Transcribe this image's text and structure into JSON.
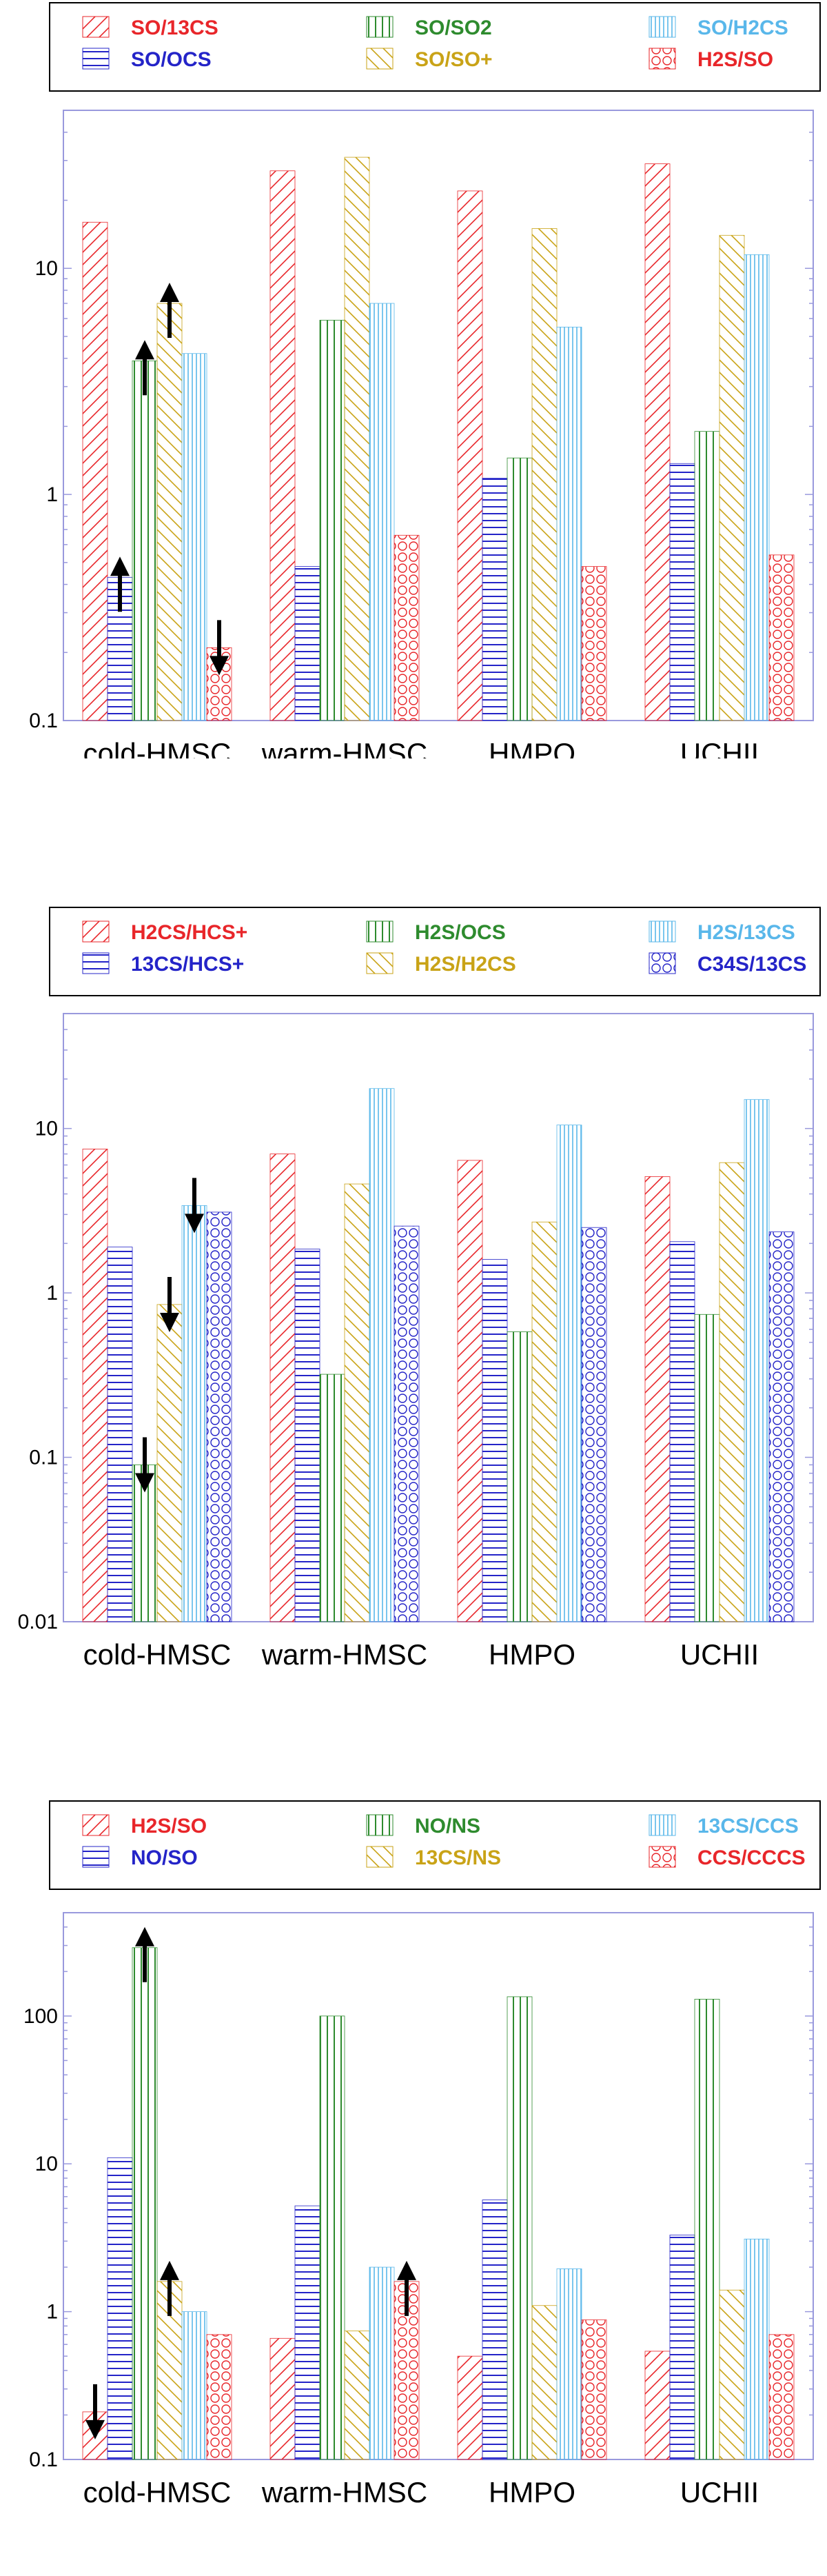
{
  "colors": {
    "red": "#e8262a",
    "green": "#2e8b2e",
    "lightblue": "#59b7ea",
    "blue": "#2424c8",
    "gold": "#c9a317",
    "axis": "#9999dd"
  },
  "chart_data": [
    {
      "type": "bar",
      "yscale": "log",
      "ylim": [
        0.1,
        50
      ],
      "yticks": [
        {
          "value": 0.1,
          "label": "0.1"
        },
        {
          "value": 1,
          "label": "1"
        },
        {
          "value": 10,
          "label": "10"
        }
      ],
      "categories": [
        "cold-HMSC",
        "warm-HMSC",
        "HMPO",
        "UCHII"
      ],
      "series": [
        {
          "name": "SO/13CS",
          "color": "#e8262a",
          "pattern": "diag",
          "values": [
            16,
            27,
            22,
            29
          ]
        },
        {
          "name": "SO/OCS",
          "color": "#2424c8",
          "pattern": "horiz",
          "values": [
            0.43,
            0.48,
            1.18,
            1.37
          ]
        },
        {
          "name": "SO/SO2",
          "color": "#2e8b2e",
          "pattern": "vert",
          "values": [
            3.9,
            5.9,
            1.45,
            1.9
          ]
        },
        {
          "name": "SO/SO+",
          "color": "#c9a317",
          "pattern": "antidiag",
          "values": [
            7.0,
            31,
            15,
            14
          ]
        },
        {
          "name": "SO/H2CS",
          "color": "#59b7ea",
          "pattern": "densevert",
          "values": [
            4.2,
            7.0,
            5.5,
            11.5
          ]
        },
        {
          "name": "H2S/SO",
          "color": "#e8262a",
          "pattern": "circles",
          "values": [
            0.21,
            0.66,
            0.48,
            0.54
          ]
        }
      ],
      "arrows": [
        {
          "series": 1,
          "category": 0,
          "dir": "up"
        },
        {
          "series": 2,
          "category": 0,
          "dir": "up"
        },
        {
          "series": 3,
          "category": 0,
          "dir": "up"
        },
        {
          "series": 5,
          "category": 0,
          "dir": "down"
        }
      ]
    },
    {
      "type": "bar",
      "yscale": "log",
      "ylim": [
        0.01,
        50
      ],
      "yticks": [
        {
          "value": 0.01,
          "label": "0.01"
        },
        {
          "value": 0.1,
          "label": "0.1"
        },
        {
          "value": 1,
          "label": "1"
        },
        {
          "value": 10,
          "label": "10"
        }
      ],
      "categories": [
        "cold-HMSC",
        "warm-HMSC",
        "HMPO",
        "UCHII"
      ],
      "series": [
        {
          "name": "H2CS/HCS+",
          "color": "#e8262a",
          "pattern": "diag",
          "values": [
            7.5,
            7.0,
            6.4,
            5.1
          ]
        },
        {
          "name": "13CS/HCS+",
          "color": "#2424c8",
          "pattern": "horiz",
          "values": [
            1.9,
            1.85,
            1.6,
            2.05
          ]
        },
        {
          "name": "H2S/OCS",
          "color": "#2e8b2e",
          "pattern": "vert",
          "values": [
            0.09,
            0.32,
            0.58,
            0.74
          ]
        },
        {
          "name": "H2S/H2CS",
          "color": "#c9a317",
          "pattern": "antidiag",
          "values": [
            0.85,
            4.6,
            2.7,
            6.2
          ]
        },
        {
          "name": "H2S/13CS",
          "color": "#59b7ea",
          "pattern": "densevert",
          "values": [
            3.4,
            17.5,
            10.5,
            15
          ]
        },
        {
          "name": "C34S/13CS",
          "color": "#2424c8",
          "pattern": "circles",
          "values": [
            3.1,
            2.55,
            2.5,
            2.35
          ]
        }
      ],
      "arrows": [
        {
          "series": 2,
          "category": 0,
          "dir": "down"
        },
        {
          "series": 3,
          "category": 0,
          "dir": "down"
        },
        {
          "series": 4,
          "category": 0,
          "dir": "down"
        }
      ]
    },
    {
      "type": "bar",
      "yscale": "log",
      "ylim": [
        0.1,
        500
      ],
      "yticks": [
        {
          "value": 0.1,
          "label": "0.1"
        },
        {
          "value": 1,
          "label": "1"
        },
        {
          "value": 10,
          "label": "10"
        },
        {
          "value": 100,
          "label": "100"
        }
      ],
      "categories": [
        "cold-HMSC",
        "warm-HMSC",
        "HMPO",
        "UCHII"
      ],
      "series": [
        {
          "name": "H2S/SO",
          "color": "#e8262a",
          "pattern": "diag",
          "values": [
            0.21,
            0.66,
            0.5,
            0.54
          ]
        },
        {
          "name": "NO/SO",
          "color": "#2424c8",
          "pattern": "horiz",
          "values": [
            11,
            5.2,
            5.7,
            3.3
          ]
        },
        {
          "name": "NO/NS",
          "color": "#2e8b2e",
          "pattern": "vert",
          "values": [
            290,
            100,
            135,
            130
          ]
        },
        {
          "name": "13CS/NS",
          "color": "#c9a317",
          "pattern": "antidiag",
          "values": [
            1.6,
            0.74,
            1.1,
            1.4
          ]
        },
        {
          "name": "13CS/CCS",
          "color": "#59b7ea",
          "pattern": "densevert",
          "values": [
            1.0,
            2.0,
            1.95,
            3.1
          ]
        },
        {
          "name": "CCS/CCCS",
          "color": "#e8262a",
          "pattern": "circles",
          "values": [
            0.7,
            1.6,
            0.88,
            0.7
          ]
        }
      ],
      "arrows": [
        {
          "series": 0,
          "category": 0,
          "dir": "down"
        },
        {
          "series": 2,
          "category": 0,
          "dir": "up"
        },
        {
          "series": 3,
          "category": 0,
          "dir": "up"
        },
        {
          "series": 5,
          "category": 1,
          "dir": "up"
        }
      ]
    }
  ]
}
